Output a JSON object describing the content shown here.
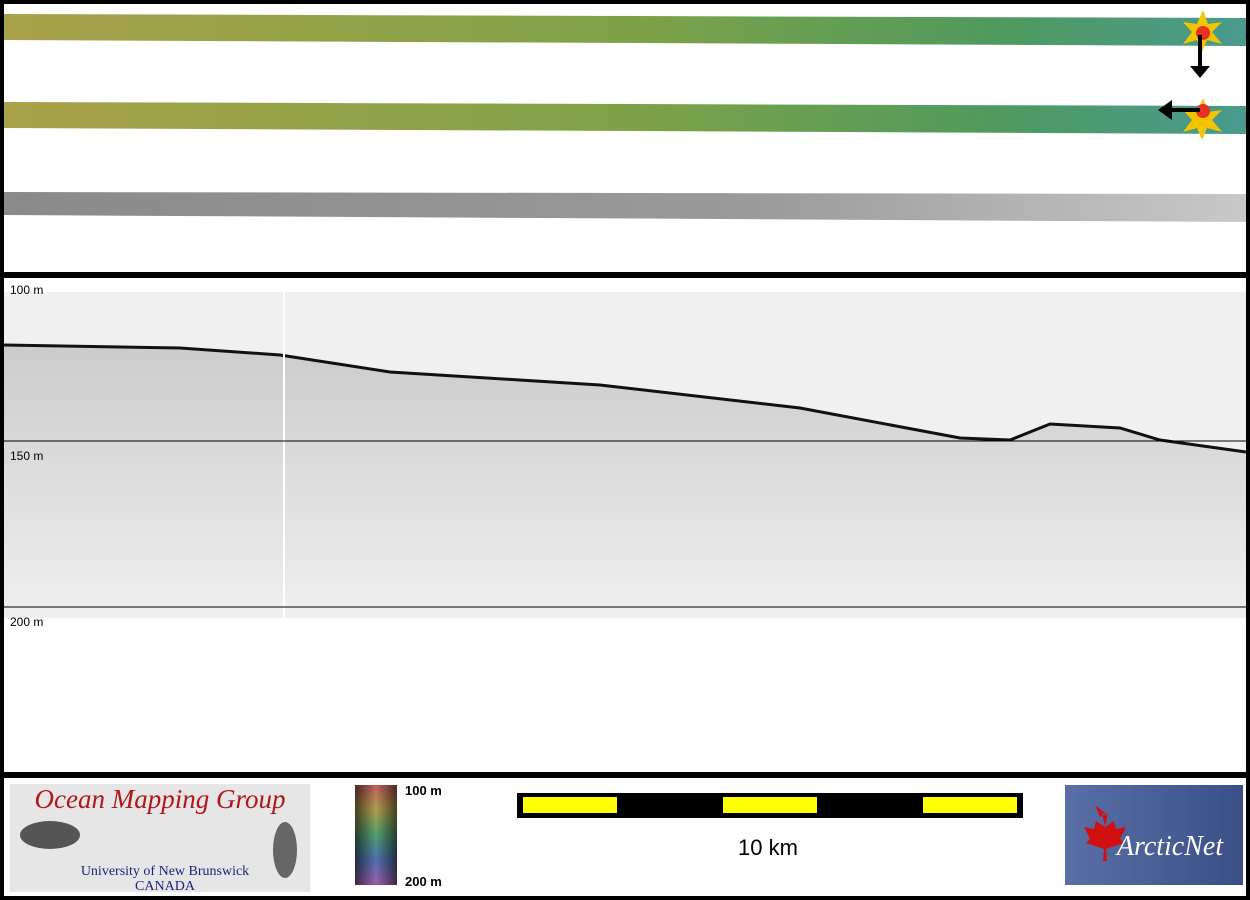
{
  "profile": {
    "depth_labels": [
      "100 m",
      "150 m",
      "200 m"
    ]
  },
  "footer": {
    "logo_title": "Ocean Mapping Group",
    "logo_line1": "University of New Brunswick",
    "logo_line2": "CANADA",
    "colorbar_top": "100 m",
    "colorbar_bottom": "200 m",
    "scale_label": "10 km",
    "partner": "ArcticNet"
  }
}
